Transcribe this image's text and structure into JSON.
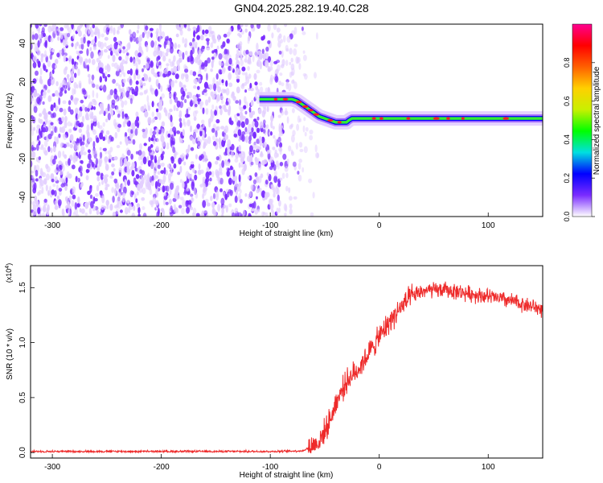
{
  "title": "GN04.2025.282.19.40.C28",
  "colors": {
    "snr_line": "#ee2a2a",
    "ridge_main": "#33ee33",
    "ridge_edge": "#0000ff",
    "ridge_hot": "#ff2020",
    "noise_strong": "#7a2cff",
    "noise_weak": "#e2ceff"
  },
  "chart_data": [
    {
      "type": "heatmap",
      "title": "GN04.2025.282.19.40.C28",
      "xlabel": "Height of straight line (km)",
      "ylabel": "Frequency (Hz)",
      "xlim": [
        -320,
        150
      ],
      "ylim": [
        -50,
        50
      ],
      "xticks": [
        -300,
        -200,
        -100,
        0,
        100
      ],
      "yticks": [
        -40,
        -20,
        0,
        20,
        40
      ],
      "colorbar": {
        "label": "Normalized spectral amplitude",
        "range": [
          0,
          1
        ],
        "ticks": [
          0.0,
          0.2,
          0.4,
          0.6,
          0.8
        ],
        "tick_labels": [
          "0.0",
          "0.2",
          "0.4",
          "0.6",
          "0.8"
        ],
        "colormap": [
          "#ffffff",
          "#7a2cff",
          "#0000ff",
          "#00e0e0",
          "#00ff00",
          "#c8f000",
          "#ffd000",
          "#ff6000",
          "#ff0000",
          "#ff0090"
        ]
      },
      "ridge": {
        "x": [
          -110,
          -100,
          -90,
          -80,
          -75,
          -70,
          -65,
          -60,
          -55,
          -50,
          -45,
          -40,
          -35,
          -30,
          -28,
          -25,
          -20,
          -10,
          0,
          20,
          50,
          80,
          100,
          120,
          150
        ],
        "y": [
          11,
          11,
          11,
          11,
          10,
          8,
          6,
          4,
          2,
          1,
          0,
          -1,
          -1,
          -1,
          0,
          1,
          1,
          1,
          1,
          1,
          1,
          1,
          1,
          1,
          1
        ]
      },
      "noise_region": {
        "x_from": -320,
        "x_to": -75
      }
    },
    {
      "type": "line",
      "xlabel": "Height of straight line (km)",
      "ylabel": "SNR (10 * v/v)",
      "multiplier": "(x10",
      "multiplier_exp": "4",
      "multiplier_close": ")",
      "xlim": [
        -320,
        150
      ],
      "ylim": [
        -0.05,
        1.7
      ],
      "xticks": [
        -300,
        -200,
        -100,
        0,
        100
      ],
      "yticks": [
        0.0,
        0.5,
        1.0,
        1.5
      ],
      "ytick_labels": [
        "0.0",
        "0.5",
        "1.0",
        "1.5"
      ],
      "series_envelope": {
        "x": [
          -320,
          -200,
          -100,
          -70,
          -55,
          -45,
          -40,
          -30,
          -20,
          -10,
          0,
          10,
          20,
          30,
          40,
          60,
          80,
          100,
          120,
          140,
          150
        ],
        "y": [
          0.01,
          0.01,
          0.01,
          0.015,
          0.1,
          0.3,
          0.45,
          0.65,
          0.75,
          0.9,
          1.05,
          1.2,
          1.32,
          1.42,
          1.47,
          1.48,
          1.45,
          1.42,
          1.38,
          1.33,
          1.3
        ]
      }
    }
  ]
}
